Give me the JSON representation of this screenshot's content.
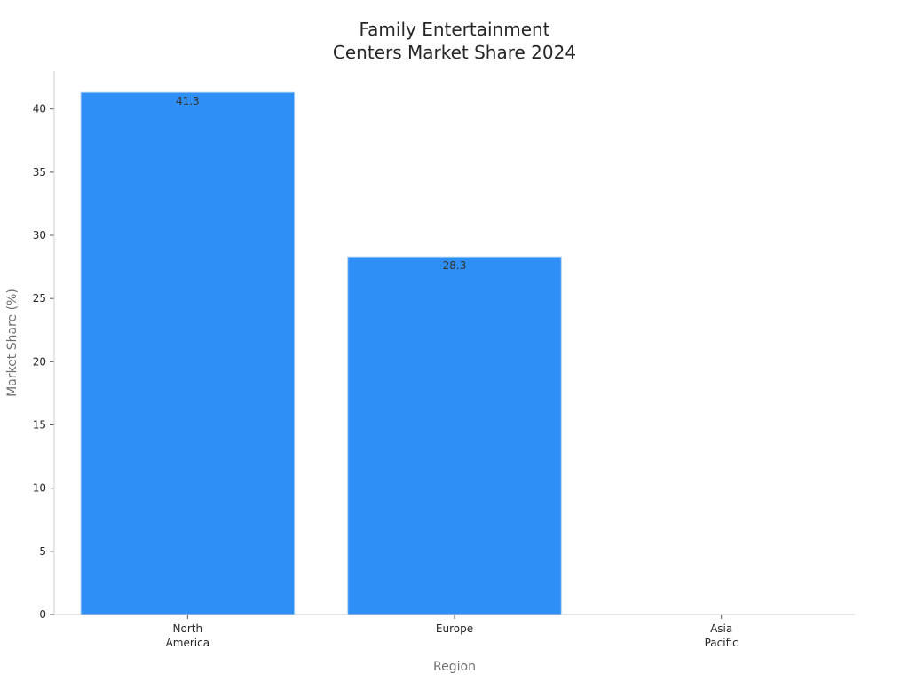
{
  "chart_data": {
    "type": "bar",
    "title_lines": [
      "Family Entertainment",
      "Centers Market Share 2024"
    ],
    "xlabel": "Region",
    "ylabel": "Market Share (%)",
    "categories": [
      [
        "North",
        "America"
      ],
      [
        "Europe"
      ],
      [
        "Asia",
        "Pacific"
      ]
    ],
    "values": [
      41.3,
      28.3,
      null
    ],
    "data_labels": [
      "41.3",
      "28.3",
      ""
    ],
    "ylim": [
      0,
      43
    ],
    "yticks": [
      0,
      5,
      10,
      15,
      20,
      25,
      30,
      35,
      40
    ],
    "grid": false,
    "legend": "none",
    "colors": {
      "bar_fill": "#2e90f7",
      "bar_stroke": "#a9cdf6",
      "axis": "#cccccc",
      "tick": "#555555"
    }
  }
}
